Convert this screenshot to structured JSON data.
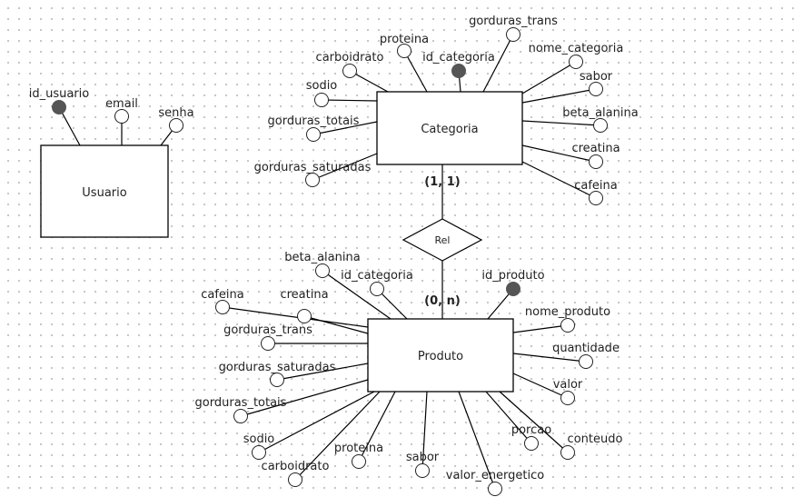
{
  "colors": {
    "line": "#000000",
    "entity_fill": "#ffffff",
    "key_fill": "#555555",
    "attr_fill": "#ffffff"
  },
  "entities": {
    "usuario": "Usuario",
    "categoria": "Categoria",
    "produto": "Produto"
  },
  "relationship": {
    "label": "Rel",
    "card_top": "(1, 1)",
    "card_bottom": "(0, n)"
  },
  "usuario_attrs": [
    {
      "name": "id_usuario",
      "key": true
    },
    {
      "name": "email",
      "key": false
    },
    {
      "name": "senha",
      "key": false
    }
  ],
  "categoria_attrs": [
    {
      "name": "gorduras_trans",
      "key": false
    },
    {
      "name": "proteina",
      "key": false
    },
    {
      "name": "id_categoria",
      "key": true
    },
    {
      "name": "nome_categoria",
      "key": false
    },
    {
      "name": "carboidrato",
      "key": false
    },
    {
      "name": "sabor",
      "key": false
    },
    {
      "name": "sodio",
      "key": false
    },
    {
      "name": "beta_alanina",
      "key": false
    },
    {
      "name": "gorduras_totais",
      "key": false
    },
    {
      "name": "creatina",
      "key": false
    },
    {
      "name": "gorduras_saturadas",
      "key": false
    },
    {
      "name": "cafeina",
      "key": false
    }
  ],
  "produto_attrs": [
    {
      "name": "beta_alanina",
      "key": false
    },
    {
      "name": "id_categoria",
      "key": false
    },
    {
      "name": "id_produto",
      "key": true
    },
    {
      "name": "cafeina",
      "key": false
    },
    {
      "name": "creatina",
      "key": false
    },
    {
      "name": "nome_produto",
      "key": false
    },
    {
      "name": "gorduras_trans",
      "key": false
    },
    {
      "name": "quantidade",
      "key": false
    },
    {
      "name": "gorduras_saturadas",
      "key": false
    },
    {
      "name": "valor",
      "key": false
    },
    {
      "name": "gorduras_totais",
      "key": false
    },
    {
      "name": "conteudo",
      "key": false
    },
    {
      "name": "porcao",
      "key": false
    },
    {
      "name": "sodio",
      "key": false
    },
    {
      "name": "proteina",
      "key": false
    },
    {
      "name": "sabor",
      "key": false
    },
    {
      "name": "carboidrato",
      "key": false
    },
    {
      "name": "valor_energetico",
      "key": false
    }
  ]
}
